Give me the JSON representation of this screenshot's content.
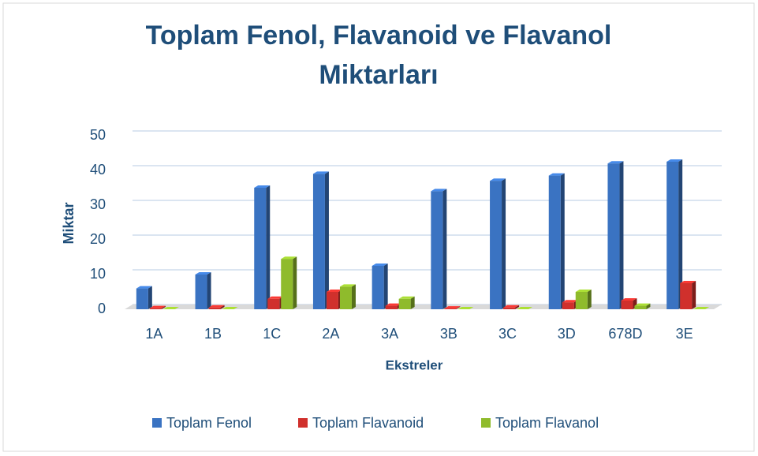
{
  "chart_data": {
    "type": "bar3d",
    "title": "Toplam Fenol, Flavanoid ve Flavanol Miktarları",
    "x_label": "Ekstreler",
    "y_label": "Miktar",
    "categories": [
      "1A",
      "1B",
      "1C",
      "2A",
      "3A",
      "3B",
      "3C",
      "3D",
      "678D",
      "3E"
    ],
    "series": [
      {
        "name": "Toplam Fenol",
        "color": "#3a73c2",
        "values": [
          6,
          10,
          35,
          39,
          12.5,
          34,
          37,
          38.5,
          42,
          42.5
        ]
      },
      {
        "name": "Toplam Flavanoid",
        "color": "#d0302c",
        "values": [
          0.3,
          0.5,
          3,
          5,
          1,
          0.2,
          0.5,
          2,
          2.5,
          7.5
        ]
      },
      {
        "name": "Toplam Flavanol",
        "color": "#8fbb2c",
        "values": [
          0,
          0,
          14.5,
          6.5,
          3,
          0,
          0,
          5,
          1,
          0
        ]
      }
    ],
    "ylim": [
      0,
      50
    ],
    "yticks": [
      0,
      10,
      20,
      30,
      40,
      50
    ],
    "grid": true,
    "legend": "bottom"
  }
}
